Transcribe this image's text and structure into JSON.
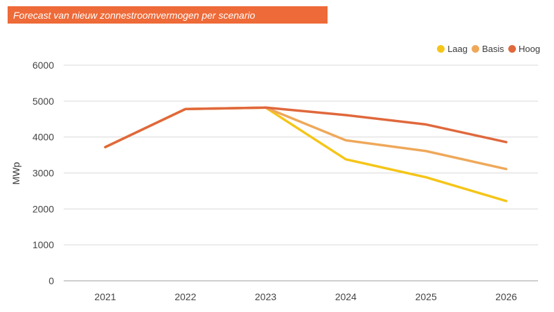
{
  "title": "Forecast van nieuw zonnestroomvermogen per scenario",
  "colors": {
    "banner": "#EE6A38",
    "grid": "#d9d9d9",
    "axis": "#cfcfcf"
  },
  "chart_data": {
    "type": "line",
    "title": "Forecast van nieuw zonnestroomvermogen per scenario",
    "xlabel": "",
    "ylabel": "MWp",
    "categories": [
      "2021",
      "2022",
      "2023",
      "2024",
      "2025",
      "2026"
    ],
    "ylim": [
      0,
      6000
    ],
    "yticks": [
      0,
      1000,
      2000,
      3000,
      4000,
      5000,
      6000
    ],
    "grid": true,
    "legend_position": "top-right",
    "series": [
      {
        "name": "Laag",
        "color": "#F5C518",
        "values": [
          3720,
          4780,
          4820,
          3380,
          2880,
          2220
        ]
      },
      {
        "name": "Basis",
        "color": "#EFA85A",
        "values": [
          3720,
          4780,
          4820,
          3910,
          3610,
          3110
        ]
      },
      {
        "name": "Hoog",
        "color": "#E0683C",
        "values": [
          3720,
          4780,
          4820,
          4610,
          4350,
          3860
        ]
      }
    ]
  }
}
